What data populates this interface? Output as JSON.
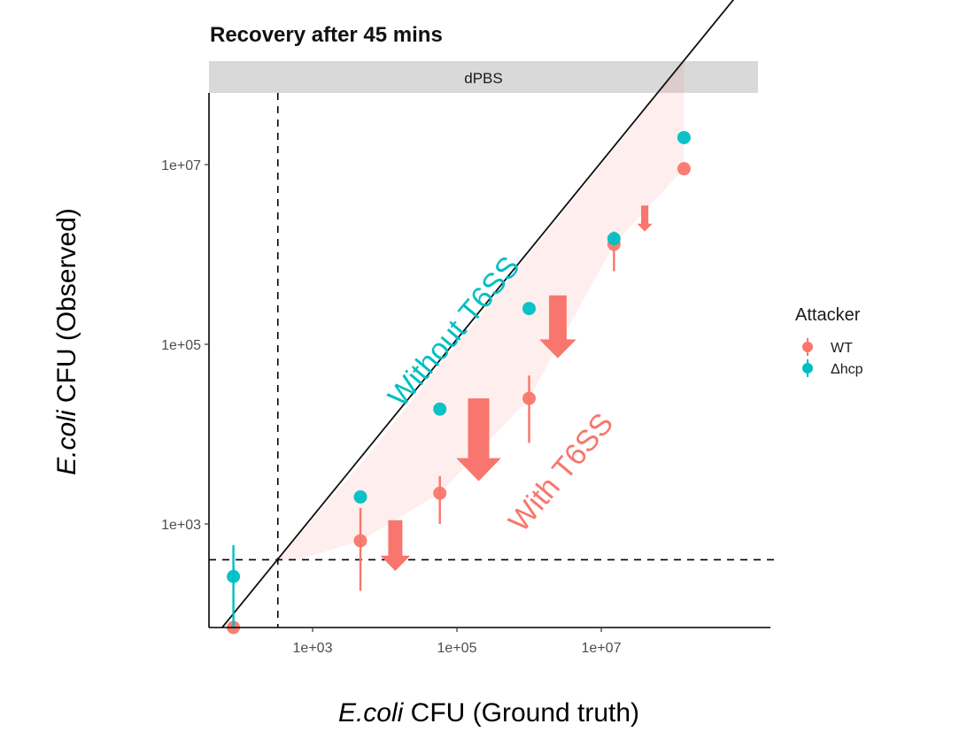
{
  "chart_data": {
    "type": "scatter",
    "title": "Recovery after 45 mins",
    "facet_label": "dPBS",
    "xlabel_italic": "E.coli",
    "xlabel_rest": " CFU (Ground truth)",
    "ylabel_italic": "E.coli",
    "ylabel_rest": " CFU (Observed)",
    "x_scale": "log10",
    "y_scale": "log10",
    "xlim": [
      30,
      80000000
    ],
    "ylim": [
      60,
      70000000
    ],
    "x_ticks": [
      1000,
      100000,
      10000000
    ],
    "x_tick_labels": [
      "1e+03",
      "1e+05",
      "1e+07"
    ],
    "y_ticks": [
      1000,
      100000,
      10000000
    ],
    "y_tick_labels": [
      "1e+03",
      "1e+05",
      "1e+07"
    ],
    "reference_lines": {
      "identity": "y = x",
      "vertical_dashed_x": 330,
      "horizontal_dashed_y": 400
    },
    "legend": {
      "title": "Attacker",
      "position": "right",
      "entries": [
        {
          "name": "WT",
          "color": "#F8766D"
        },
        {
          "name": "Δhcp",
          "color": "#00BFC4"
        }
      ]
    },
    "series": [
      {
        "name": "WT",
        "color": "#F8766D",
        "points": [
          {
            "x": 80,
            "y": 60,
            "ymin": 60,
            "ymax": 60
          },
          {
            "x": 4600,
            "y": 650,
            "ymin": 180,
            "ymax": 1500
          },
          {
            "x": 58000,
            "y": 2200,
            "ymin": 1000,
            "ymax": 3400
          },
          {
            "x": 1000000,
            "y": 25000,
            "ymin": 8000,
            "ymax": 45000
          },
          {
            "x": 15000000,
            "y": 1300000,
            "ymin": 650000,
            "ymax": 1800000
          },
          {
            "x": 140000000,
            "y": 9000000,
            "ymin": 9000000,
            "ymax": 9000000
          }
        ]
      },
      {
        "name": "Δhcp",
        "color": "#00BFC4",
        "points": [
          {
            "x": 80,
            "y": 260,
            "ymin": 60,
            "ymax": 580
          },
          {
            "x": 4600,
            "y": 2000,
            "ymin": 2000,
            "ymax": 2000
          },
          {
            "x": 58000,
            "y": 19000,
            "ymin": 19000,
            "ymax": 19000
          },
          {
            "x": 1000000,
            "y": 250000,
            "ymin": 250000,
            "ymax": 250000
          },
          {
            "x": 15000000,
            "y": 1500000,
            "ymin": 1500000,
            "ymax": 1500000
          },
          {
            "x": 140000000,
            "y": 20000000,
            "ymin": 20000000,
            "ymax": 20000000
          }
        ]
      }
    ],
    "annotations": [
      {
        "text": "Without T6SS",
        "color": "#00BFC4"
      },
      {
        "text": "With T6SS",
        "color": "#F8766D"
      }
    ],
    "arrows": [
      {
        "x": 14000,
        "from_y": 1100,
        "to_y": 300
      },
      {
        "x": 200000,
        "from_y": 25000,
        "to_y": 3000
      },
      {
        "x": 2500000,
        "from_y": 350000,
        "to_y": 70000
      },
      {
        "x": 40000000,
        "from_y": 3500000,
        "to_y": 1800000
      }
    ]
  }
}
